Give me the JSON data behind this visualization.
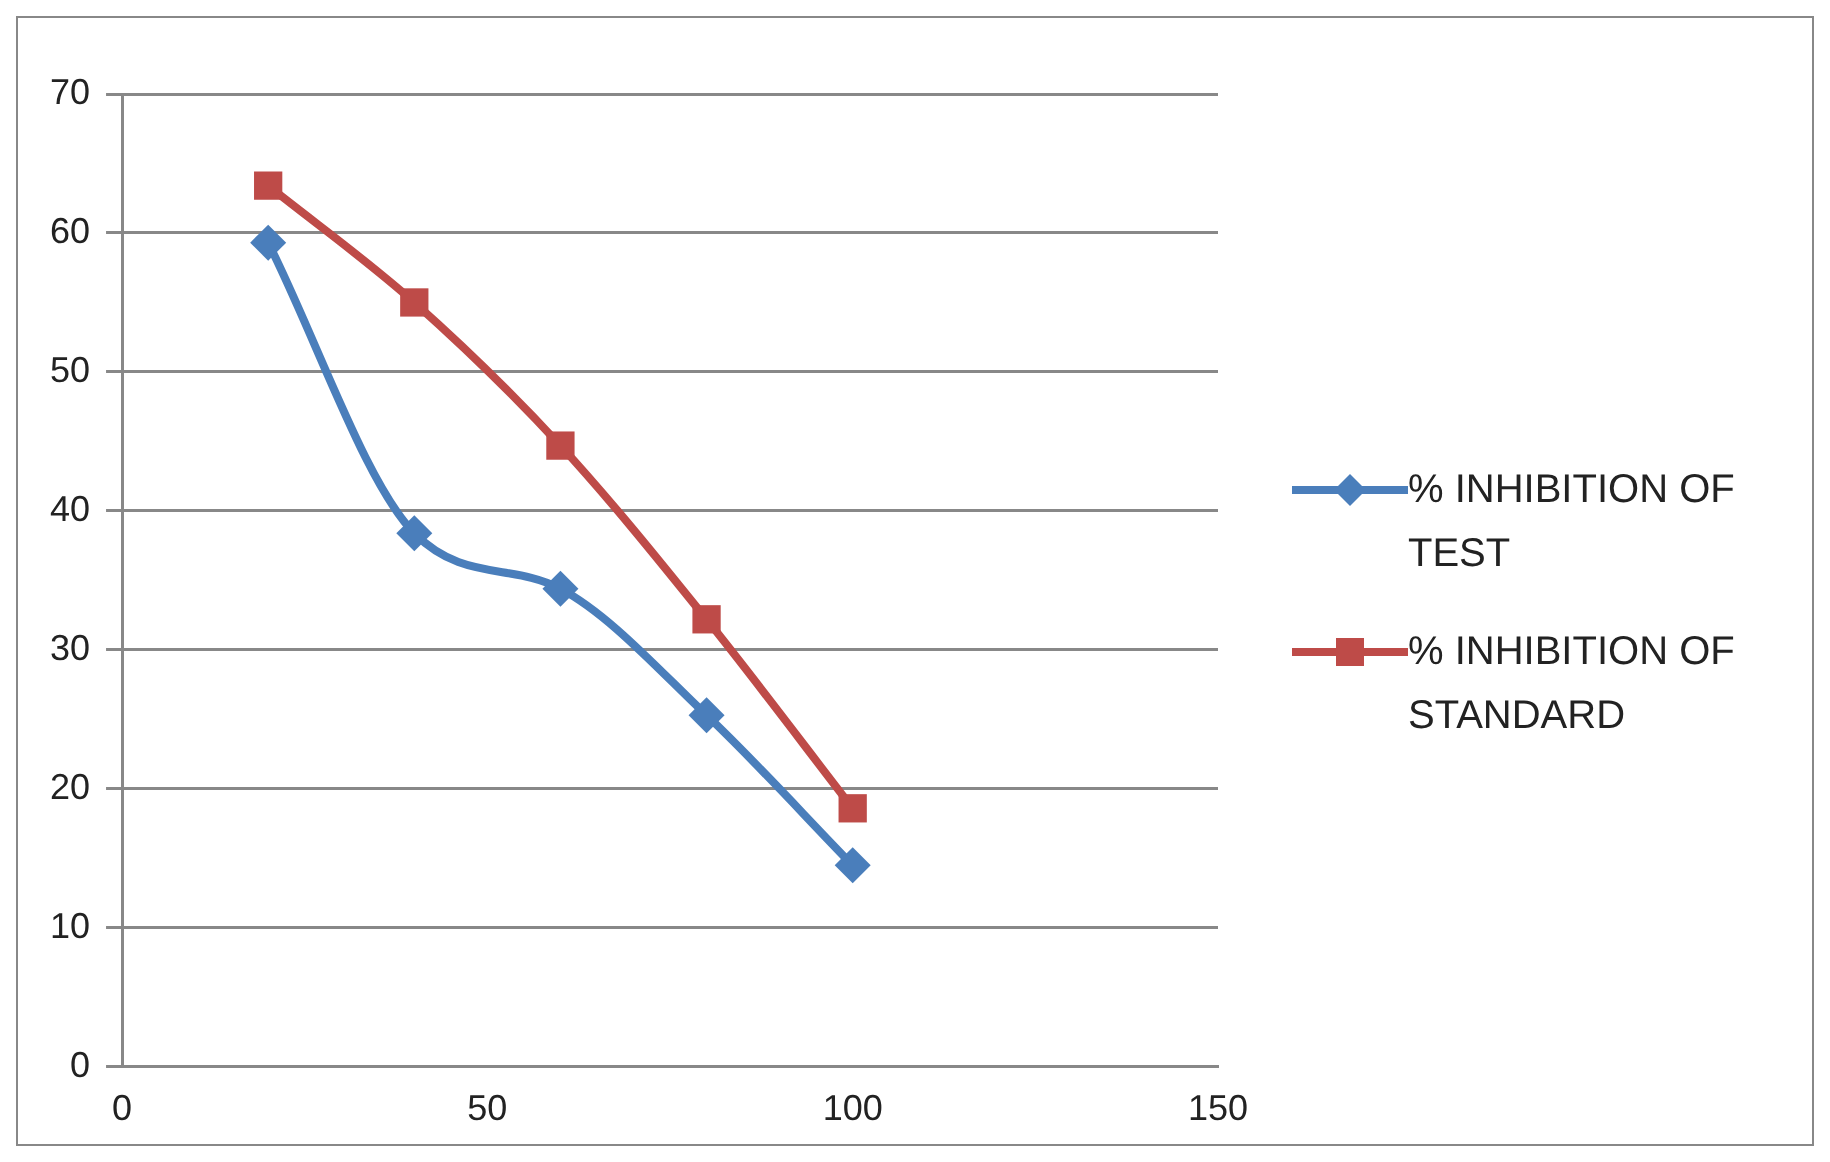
{
  "chart_data": {
    "type": "line",
    "x": [
      20,
      40,
      60,
      80,
      100
    ],
    "series": [
      {
        "name": "% INHIBITION OF TEST",
        "color": "#4a7ebb",
        "marker": "diamond",
        "values": [
          59.3,
          38.4,
          34.4,
          25.3,
          14.5
        ]
      },
      {
        "name": "% INHIBITION OF STANDARD",
        "color": "#be4b48",
        "marker": "square",
        "values": [
          63.4,
          55.0,
          44.7,
          32.2,
          18.6
        ]
      }
    ],
    "xlim": [
      0,
      150
    ],
    "xticks": [
      0,
      50,
      100,
      150
    ],
    "ylim": [
      0,
      70
    ],
    "yticks": [
      0,
      10,
      20,
      30,
      40,
      50,
      60,
      70
    ],
    "grid": "y",
    "legend": "right",
    "line_style": "solid"
  }
}
